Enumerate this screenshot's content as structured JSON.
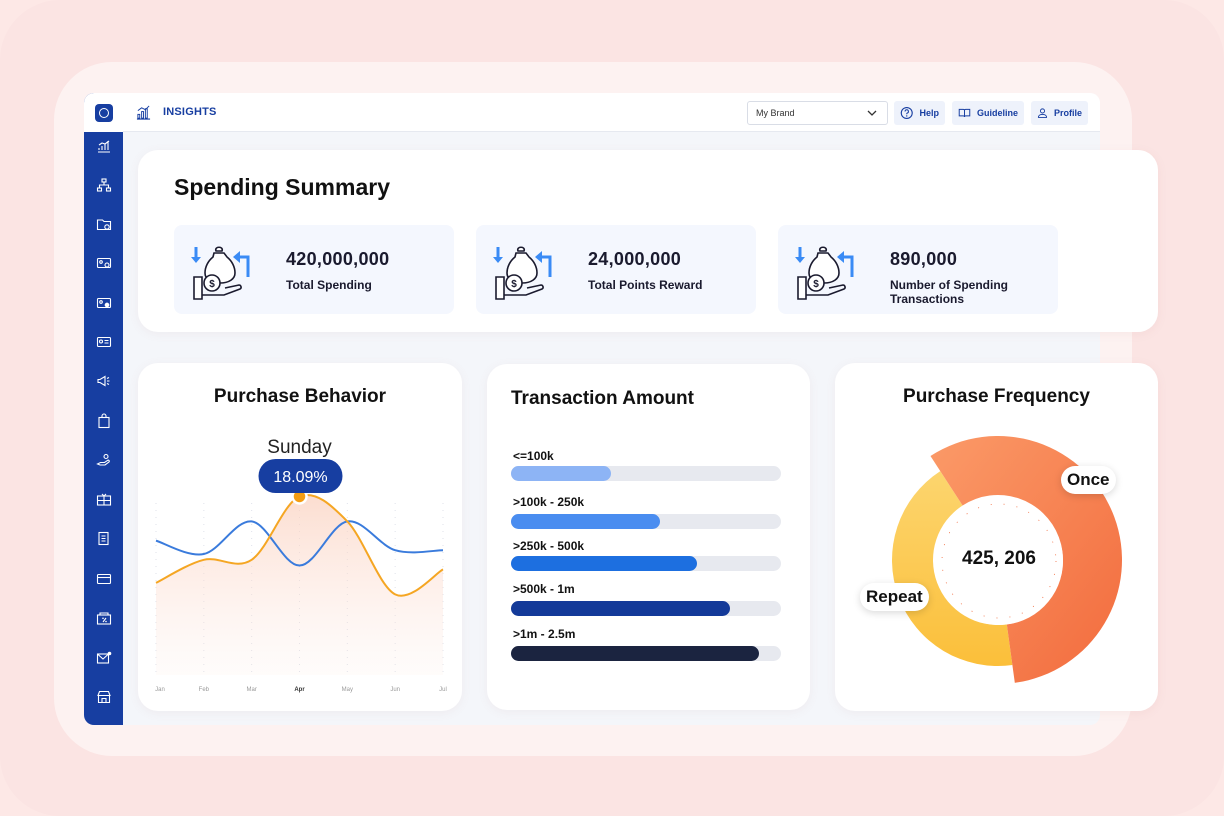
{
  "header": {
    "title": "INSIGHTS",
    "brand_select_value": "My Brand",
    "help_label": "Help",
    "guideline_label": "Guideline",
    "profile_label": "Profile"
  },
  "sidebar": {
    "icons": [
      "chart-icon",
      "hierarchy-icon",
      "folder-icon",
      "card-settings-icon",
      "card-gear-icon",
      "id-card-icon",
      "megaphone-icon",
      "bag-icon",
      "hand-coins-icon",
      "gift-icon",
      "document-icon",
      "credit-card-icon",
      "discount-icon",
      "mail-icon",
      "store-icon"
    ]
  },
  "summary": {
    "title": "Spending Summary",
    "stats": [
      {
        "value": "420,000,000",
        "label": "Total Spending"
      },
      {
        "value": "24,000,000",
        "label": "Total Points Reward"
      },
      {
        "value": "890,000",
        "label": "Number of Spending Transactions"
      }
    ]
  },
  "purchase_behavior": {
    "title": "Purchase Behavior",
    "highlight_day": "Sunday",
    "highlight_value": "18.09%"
  },
  "transaction_amount": {
    "title": "Transaction Amount"
  },
  "purchase_frequency": {
    "title": "Purchase Frequency",
    "center_value": "425, 206",
    "once_label": "Once",
    "repeat_label": "Repeat"
  },
  "chart_data": [
    {
      "type": "line",
      "title": "Purchase Behavior",
      "categories": [
        "Jan",
        "Feb",
        "Mar",
        "Apr",
        "May",
        "Jun",
        "Jul"
      ],
      "ylim": [
        0,
        100
      ],
      "series": [
        {
          "values": [
            48,
            60,
            60,
            93,
            80,
            42,
            55
          ],
          "color": "#f5a623"
        },
        {
          "values": [
            70,
            63,
            80,
            57,
            80,
            65,
            65
          ],
          "color": "#3a7bdc"
        }
      ],
      "highlight": {
        "category": "Apr",
        "label": "Sunday",
        "value": "18.09%"
      }
    },
    {
      "type": "bar",
      "title": "Transaction Amount",
      "categories": [
        "<=100k",
        ">100k - 250k",
        ">250k - 500k",
        ">500k - 1m",
        ">1m - 2.5m"
      ],
      "values": [
        37,
        55,
        69,
        81,
        92
      ],
      "ylim": [
        0,
        100
      ],
      "colors": [
        "#8db4f5",
        "#4a8df0",
        "#1d6fe0",
        "#143a99",
        "#1b2440"
      ]
    },
    {
      "type": "pie",
      "title": "Purchase Frequency",
      "categories": [
        "Once",
        "Repeat"
      ],
      "values": [
        57,
        43
      ],
      "colors": [
        "#f26b3d",
        "#fbbf3a"
      ],
      "center_label": "425, 206"
    }
  ]
}
